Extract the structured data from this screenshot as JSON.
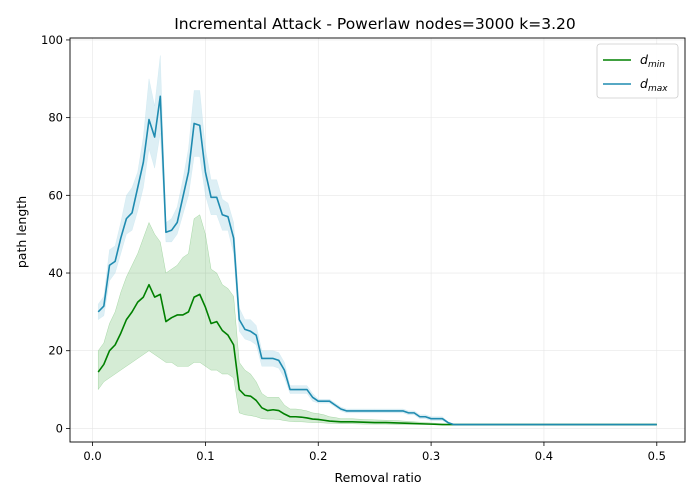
{
  "chart_data": {
    "type": "line",
    "title": "Incremental Attack - Powerlaw nodes=3000 k=3.20",
    "xlabel": "Removal ratio",
    "ylabel": "path length",
    "xlim": [
      -0.02,
      0.525
    ],
    "ylim": [
      -3.5,
      100.5
    ],
    "xticks": [
      0.0,
      0.1,
      0.2,
      0.3,
      0.4,
      0.5
    ],
    "xtick_labels": [
      "0.0",
      "0.1",
      "0.2",
      "0.3",
      "0.4",
      "0.5"
    ],
    "yticks": [
      0,
      20,
      40,
      60,
      80,
      100
    ],
    "ytick_labels": [
      "0",
      "20",
      "40",
      "60",
      "80",
      "100"
    ],
    "grid": true,
    "legend_position": "top-right",
    "series": [
      {
        "name": "d",
        "name_subscript": "min",
        "color": "#008000",
        "band_color": "#2ca02c",
        "x": [
          0.005,
          0.01,
          0.015,
          0.02,
          0.025,
          0.03,
          0.035,
          0.04,
          0.045,
          0.05,
          0.055,
          0.06,
          0.065,
          0.07,
          0.075,
          0.08,
          0.085,
          0.09,
          0.095,
          0.1,
          0.105,
          0.11,
          0.115,
          0.12,
          0.125,
          0.13,
          0.135,
          0.14,
          0.145,
          0.15,
          0.155,
          0.16,
          0.165,
          0.17,
          0.175,
          0.18,
          0.185,
          0.19,
          0.195,
          0.2,
          0.205,
          0.21,
          0.215,
          0.22,
          0.225,
          0.23,
          0.24,
          0.25,
          0.26,
          0.27,
          0.28,
          0.29,
          0.3,
          0.31,
          0.315,
          0.32,
          0.35,
          0.4,
          0.45,
          0.5
        ],
        "y": [
          14.5,
          16.5,
          20,
          21.5,
          24.5,
          28,
          30,
          32.5,
          33.8,
          37,
          33.8,
          34.5,
          27.5,
          28.5,
          29.2,
          29.2,
          30,
          33.8,
          34.5,
          31.2,
          27,
          27.5,
          25.2,
          24,
          21.5,
          10,
          8.5,
          8.3,
          7.2,
          5.3,
          4.6,
          4.8,
          4.6,
          3.7,
          3,
          3,
          2.9,
          2.7,
          2.4,
          2.3,
          2.1,
          1.9,
          1.8,
          1.7,
          1.7,
          1.7,
          1.6,
          1.5,
          1.5,
          1.4,
          1.3,
          1.2,
          1.1,
          1.0,
          1.0,
          1.0,
          1.0,
          1.0,
          1.0,
          1.0
        ],
        "lower": [
          10,
          12,
          13,
          14,
          15,
          16,
          17,
          18,
          19,
          20,
          19,
          18,
          17,
          17,
          16,
          16,
          16,
          17,
          17,
          16,
          15,
          15,
          14,
          14,
          13,
          4,
          3.5,
          3.3,
          3,
          2.5,
          2.4,
          2.4,
          2.3,
          2,
          1.8,
          1.7,
          1.7,
          1.6,
          1.5,
          1.5,
          1.4,
          1.3,
          1.3,
          1.2,
          1.2,
          1.2,
          1.1,
          1.1,
          1.1,
          1.0,
          1.0,
          1.0,
          1.0,
          1.0,
          1.0,
          1.0,
          1.0,
          1.0,
          1.0,
          1.0
        ],
        "upper": [
          20,
          22,
          27,
          30,
          35,
          39,
          42,
          45,
          49,
          53,
          50,
          48,
          40,
          41,
          42,
          44,
          45,
          54,
          55,
          50,
          41,
          40,
          37,
          36,
          34,
          17,
          15,
          14,
          12,
          9,
          8,
          8,
          8,
          6,
          5,
          5,
          4.8,
          4.5,
          4,
          3.8,
          3.5,
          3,
          2.8,
          2.5,
          2.5,
          2.5,
          2.3,
          2.2,
          2.1,
          2,
          1.8,
          1.6,
          1.4,
          1.2,
          1.1,
          1.0,
          1.0,
          1.0,
          1.0,
          1.0
        ]
      },
      {
        "name": "d",
        "name_subscript": "max",
        "color": "#1f8bb0",
        "band_color": "#add8e6",
        "x": [
          0.005,
          0.01,
          0.015,
          0.02,
          0.025,
          0.03,
          0.035,
          0.04,
          0.045,
          0.05,
          0.055,
          0.06,
          0.065,
          0.07,
          0.075,
          0.08,
          0.085,
          0.09,
          0.095,
          0.1,
          0.105,
          0.11,
          0.115,
          0.12,
          0.125,
          0.13,
          0.135,
          0.14,
          0.145,
          0.15,
          0.155,
          0.16,
          0.165,
          0.17,
          0.175,
          0.18,
          0.185,
          0.19,
          0.195,
          0.2,
          0.205,
          0.21,
          0.215,
          0.22,
          0.225,
          0.23,
          0.24,
          0.25,
          0.26,
          0.27,
          0.275,
          0.28,
          0.285,
          0.29,
          0.295,
          0.3,
          0.305,
          0.31,
          0.315,
          0.32,
          0.35,
          0.4,
          0.45,
          0.5
        ],
        "y": [
          30,
          31.5,
          42,
          43,
          49,
          54,
          55.5,
          62,
          68.5,
          79.5,
          75,
          85.5,
          50.5,
          51,
          53,
          59.5,
          66,
          78.5,
          78,
          66,
          59.5,
          59.5,
          55,
          54.5,
          49,
          28,
          25.5,
          25,
          24,
          18,
          18,
          18,
          17.5,
          15,
          10,
          10,
          10,
          10,
          8,
          7,
          7,
          7,
          6,
          5,
          4.5,
          4.5,
          4.5,
          4.5,
          4.5,
          4.5,
          4.5,
          4,
          4,
          3,
          3,
          2.5,
          2.5,
          2.5,
          1.5,
          1.0,
          1.0,
          1.0,
          1.0,
          1.0
        ],
        "lower": [
          28,
          29,
          38,
          40,
          45,
          50,
          51,
          56,
          62,
          72,
          67,
          76,
          48,
          48,
          50,
          55,
          60,
          70,
          70,
          60,
          55,
          55,
          51,
          51,
          45,
          25,
          23,
          22.5,
          21.5,
          16,
          16,
          16,
          15.5,
          13,
          9,
          9,
          9,
          9,
          7,
          6.5,
          6.5,
          6.5,
          5.5,
          4.5,
          4,
          4,
          4,
          4,
          4,
          4,
          4,
          3.5,
          3.5,
          2.5,
          2.5,
          2,
          2,
          2,
          1.3,
          1.0,
          1.0,
          1.0,
          1.0,
          1.0
        ],
        "upper": [
          32,
          34,
          46,
          47,
          53,
          60,
          62,
          66,
          75,
          90,
          83,
          96,
          53,
          54,
          57,
          64,
          72,
          87,
          87,
          72,
          64,
          64,
          59,
          58,
          53,
          31,
          28,
          28,
          26.5,
          20,
          20,
          20,
          19.5,
          17,
          11,
          11,
          11,
          11,
          9,
          7.5,
          7.5,
          7.5,
          6.5,
          5.5,
          5,
          5,
          5,
          5,
          5,
          5,
          5,
          4.5,
          4.5,
          3.5,
          3.5,
          3,
          3,
          3,
          1.7,
          1.0,
          1.0,
          1.0,
          1.0,
          1.0
        ]
      }
    ]
  }
}
